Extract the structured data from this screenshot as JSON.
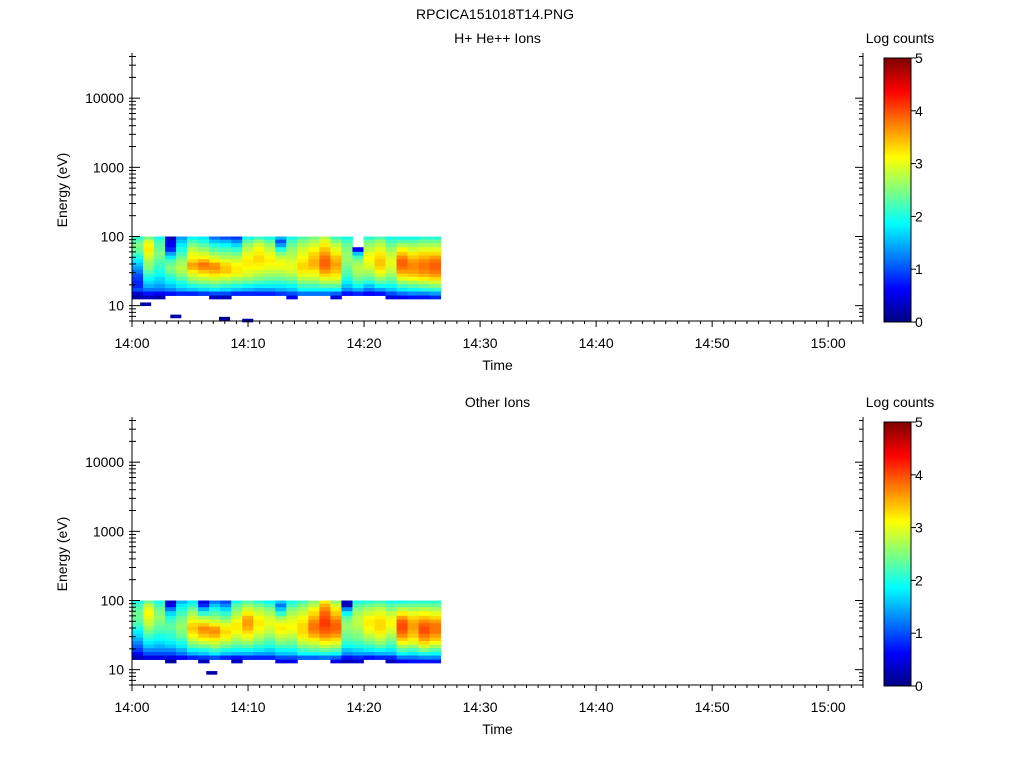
{
  "page_title": "RPCICA151018T14.PNG",
  "chart_data": [
    {
      "type": "heatmap",
      "title": "H+ He++ Ions",
      "xlabel": "Time",
      "ylabel": "Energy (eV)",
      "y_scale": "log",
      "ylim": [
        6,
        45000
      ],
      "xlim": [
        "14:00",
        "15:03"
      ],
      "x_ticks": [
        "14:00",
        "14:10",
        "14:20",
        "14:30",
        "14:40",
        "14:50",
        "15:00"
      ],
      "y_ticks": [
        "10",
        "100",
        "1000",
        "10000"
      ],
      "colorbar": {
        "label": "Log counts",
        "range": [
          0,
          5
        ],
        "ticks": [
          "0",
          "1",
          "2",
          "3",
          "4",
          "5"
        ],
        "colormap": "jet"
      },
      "energy_bins": [
        100,
        90,
        80,
        70,
        60,
        53,
        47,
        42,
        37,
        33,
        29,
        26,
        23,
        20.5,
        18,
        16,
        14,
        12.5
      ],
      "time_start": "14:00",
      "time_step_min": 0.95,
      "z": [
        [
          2.1,
          2.3,
          2.5,
          2.4,
          2.2,
          2.0,
          1.8,
          1.6,
          1.4,
          1.2,
          1.0,
          0.9,
          0.8,
          0.8,
          1.0,
          0.4,
          0.2,
          null
        ],
        [
          2.5,
          2.9,
          3.1,
          3.2,
          3.0,
          2.9,
          2.7,
          2.6,
          2.5,
          2.3,
          2.1,
          1.9,
          1.7,
          1.5,
          1.2,
          0.7,
          0.3,
          null
        ],
        [
          2.0,
          2.2,
          2.3,
          2.4,
          2.5,
          2.4,
          2.3,
          2.2,
          2.1,
          2.0,
          1.9,
          1.7,
          1.6,
          1.4,
          1.2,
          0.6,
          0.2,
          null
        ],
        [
          0.3,
          0.5,
          0.6,
          0.8,
          1.4,
          1.8,
          2.2,
          2.4,
          2.5,
          2.4,
          2.2,
          2.0,
          1.8,
          1.6,
          1.3,
          0.7,
          null,
          null
        ],
        [
          1.4,
          1.6,
          1.8,
          2.0,
          2.2,
          2.4,
          2.6,
          2.7,
          2.8,
          2.7,
          2.5,
          2.3,
          2.0,
          1.8,
          1.5,
          0.8,
          null,
          null
        ],
        [
          1.9,
          2.2,
          2.5,
          2.8,
          3.0,
          3.1,
          3.3,
          3.6,
          3.5,
          3.2,
          2.9,
          2.7,
          2.4,
          2.0,
          1.6,
          0.8,
          null,
          null
        ],
        [
          1.8,
          2.0,
          2.3,
          2.6,
          2.9,
          3.1,
          3.5,
          3.8,
          3.7,
          3.4,
          3.1,
          2.8,
          2.5,
          2.1,
          1.7,
          0.9,
          null,
          null
        ],
        [
          1.2,
          1.6,
          2.0,
          2.3,
          2.6,
          2.9,
          3.2,
          3.6,
          3.7,
          3.5,
          3.2,
          2.9,
          2.6,
          2.2,
          1.8,
          1.0,
          0.3,
          null
        ],
        [
          1.0,
          1.5,
          1.9,
          2.2,
          2.5,
          2.7,
          3.0,
          3.3,
          3.4,
          3.4,
          3.1,
          2.8,
          2.5,
          2.1,
          1.7,
          1.0,
          0.3,
          null
        ],
        [
          0.9,
          1.3,
          1.7,
          2.1,
          2.4,
          2.7,
          2.9,
          3.1,
          3.2,
          3.2,
          3.0,
          2.7,
          2.4,
          2.0,
          1.6,
          0.8,
          null,
          null
        ],
        [
          2.0,
          2.3,
          2.6,
          2.8,
          3.0,
          3.1,
          3.2,
          3.2,
          3.1,
          3.0,
          2.9,
          2.6,
          2.3,
          1.9,
          1.5,
          0.8,
          null,
          null
        ],
        [
          2.2,
          2.6,
          2.9,
          3.1,
          3.2,
          3.3,
          3.3,
          3.2,
          3.1,
          2.9,
          2.7,
          2.5,
          2.2,
          1.8,
          1.4,
          0.8,
          null,
          null
        ],
        [
          2.0,
          2.3,
          2.6,
          2.8,
          3.0,
          3.1,
          3.2,
          3.1,
          3.0,
          2.8,
          2.6,
          2.4,
          2.1,
          1.8,
          1.4,
          0.8,
          null,
          null
        ],
        [
          1.5,
          1.0,
          1.4,
          2.0,
          2.5,
          2.8,
          3.0,
          3.1,
          3.0,
          2.8,
          2.6,
          2.4,
          2.1,
          1.8,
          1.5,
          0.9,
          null,
          null
        ],
        [
          2.0,
          2.2,
          2.4,
          2.6,
          2.7,
          2.8,
          2.9,
          3.0,
          3.0,
          2.9,
          2.7,
          2.5,
          2.2,
          1.9,
          1.6,
          1.0,
          0.6,
          null
        ],
        [
          2.3,
          2.5,
          2.7,
          2.9,
          3.0,
          3.1,
          3.2,
          3.3,
          3.3,
          3.2,
          3.0,
          2.8,
          2.5,
          2.2,
          1.9,
          1.2,
          null,
          null
        ],
        [
          2.5,
          2.7,
          2.9,
          3.1,
          3.3,
          3.4,
          3.5,
          3.5,
          3.4,
          3.2,
          3.0,
          2.8,
          2.5,
          2.2,
          1.9,
          1.2,
          null,
          null
        ],
        [
          2.8,
          3.0,
          3.2,
          3.4,
          3.6,
          3.8,
          3.9,
          3.9,
          3.8,
          3.6,
          3.3,
          3.0,
          2.7,
          2.3,
          1.9,
          1.2,
          null,
          null
        ],
        [
          2.2,
          2.5,
          2.8,
          3.0,
          3.2,
          3.4,
          3.5,
          3.6,
          3.5,
          3.4,
          3.2,
          3.0,
          2.7,
          2.3,
          1.9,
          1.1,
          0.5,
          null
        ],
        [
          2.0,
          2.2,
          2.4,
          2.5,
          2.6,
          2.6,
          2.6,
          2.5,
          2.4,
          2.3,
          2.2,
          2.0,
          1.8,
          1.6,
          1.3,
          0.7,
          null,
          null
        ],
        [
          null,
          null,
          null,
          0.6,
          1.6,
          2.2,
          2.5,
          2.7,
          2.8,
          2.7,
          2.6,
          2.4,
          2.2,
          1.9,
          1.5,
          0.8,
          null,
          null
        ],
        [
          2.1,
          2.4,
          2.6,
          2.8,
          3.0,
          3.1,
          3.1,
          3.0,
          2.9,
          2.7,
          2.5,
          2.3,
          2.0,
          1.6,
          1.2,
          0.6,
          null,
          null
        ],
        [
          2.3,
          2.6,
          2.8,
          3.0,
          3.2,
          3.3,
          3.4,
          3.4,
          3.3,
          3.1,
          2.9,
          2.6,
          2.3,
          1.9,
          1.4,
          0.7,
          null,
          null
        ],
        [
          2.0,
          2.2,
          2.4,
          2.6,
          2.8,
          2.9,
          3.0,
          3.0,
          2.9,
          2.8,
          2.6,
          2.4,
          2.2,
          1.9,
          1.6,
          1.0,
          0.5,
          null
        ],
        [
          2.0,
          2.3,
          2.7,
          3.1,
          3.4,
          3.7,
          3.9,
          3.9,
          3.8,
          3.6,
          3.3,
          3.0,
          2.6,
          2.2,
          1.8,
          1.2,
          0.6,
          null
        ],
        [
          2.0,
          2.3,
          2.6,
          2.9,
          3.2,
          3.4,
          3.6,
          3.7,
          3.7,
          3.6,
          3.4,
          3.1,
          2.7,
          2.3,
          1.9,
          1.3,
          0.7,
          null
        ],
        [
          2.1,
          2.4,
          2.7,
          3.0,
          3.3,
          3.5,
          3.7,
          3.8,
          3.8,
          3.7,
          3.5,
          3.2,
          2.8,
          2.4,
          2.0,
          1.3,
          0.7,
          null
        ],
        [
          2.1,
          2.4,
          2.7,
          3.0,
          3.3,
          3.6,
          3.8,
          3.9,
          3.9,
          3.8,
          3.6,
          3.3,
          2.9,
          2.5,
          2.1,
          1.4,
          0.8,
          null
        ]
      ],
      "low_energy_points": [
        {
          "time_min": 0.7,
          "energy": 10.5,
          "value": 0.2
        },
        {
          "time_min": 3.3,
          "energy": 7.0,
          "value": 0.2
        },
        {
          "time_min": 7.5,
          "energy": 6.5,
          "value": 0.1
        },
        {
          "time_min": 9.5,
          "energy": 6.1,
          "value": 0.2
        }
      ]
    },
    {
      "type": "heatmap",
      "title": "Other Ions",
      "xlabel": "Time",
      "ylabel": "Energy (eV)",
      "y_scale": "log",
      "ylim": [
        6,
        45000
      ],
      "xlim": [
        "14:00",
        "15:03"
      ],
      "x_ticks": [
        "14:00",
        "14:10",
        "14:20",
        "14:30",
        "14:40",
        "14:50",
        "15:00"
      ],
      "y_ticks": [
        "10",
        "100",
        "1000",
        "10000"
      ],
      "colorbar": {
        "label": "Log counts",
        "range": [
          0,
          5
        ],
        "ticks": [
          "0",
          "1",
          "2",
          "3",
          "4",
          "5"
        ],
        "colormap": "jet"
      },
      "energy_bins": [
        100,
        90,
        80,
        70,
        60,
        53,
        47,
        42,
        37,
        33,
        29,
        26,
        23,
        20.5,
        18,
        16,
        14,
        12.5
      ],
      "time_start": "14:00",
      "time_step_min": 0.95,
      "z": [
        [
          2.0,
          2.2,
          2.3,
          2.4,
          2.4,
          2.3,
          2.2,
          2.0,
          1.8,
          1.7,
          1.5,
          1.3,
          1.1,
          0.9,
          0.6,
          0.3,
          null,
          null
        ],
        [
          2.4,
          2.8,
          3.0,
          3.1,
          3.0,
          2.9,
          2.8,
          2.6,
          2.4,
          2.2,
          2.0,
          1.8,
          1.6,
          1.3,
          1.0,
          0.5,
          null,
          null
        ],
        [
          2.0,
          2.2,
          2.4,
          2.5,
          2.6,
          2.5,
          2.4,
          2.3,
          2.2,
          2.0,
          1.9,
          1.7,
          1.5,
          1.3,
          1.0,
          0.5,
          null,
          null
        ],
        [
          0.3,
          0.6,
          1.2,
          1.7,
          2.0,
          2.2,
          2.3,
          2.3,
          2.2,
          2.1,
          2.0,
          1.8,
          1.6,
          1.3,
          1.0,
          0.5,
          0.2,
          null
        ],
        [
          1.5,
          1.8,
          2.0,
          2.2,
          2.4,
          2.5,
          2.6,
          2.6,
          2.5,
          2.4,
          2.2,
          2.0,
          1.8,
          1.5,
          1.2,
          0.6,
          null,
          null
        ],
        [
          1.8,
          2.1,
          2.4,
          2.7,
          2.9,
          3.1,
          3.3,
          3.4,
          3.3,
          3.1,
          2.9,
          2.6,
          2.3,
          1.9,
          1.5,
          0.8,
          null,
          null
        ],
        [
          0.5,
          0.8,
          1.5,
          2.1,
          2.7,
          3.0,
          3.4,
          3.7,
          3.6,
          3.4,
          3.1,
          2.8,
          2.4,
          2.0,
          1.6,
          0.9,
          0.3,
          null
        ],
        [
          1.2,
          1.6,
          2.0,
          2.3,
          2.6,
          2.9,
          3.2,
          3.6,
          3.7,
          3.5,
          3.2,
          2.9,
          2.6,
          2.2,
          1.8,
          1.0,
          null,
          null
        ],
        [
          1.0,
          1.3,
          1.7,
          2.1,
          2.4,
          2.7,
          3.0,
          3.2,
          3.3,
          3.2,
          3.0,
          2.7,
          2.4,
          2.0,
          1.6,
          0.8,
          null,
          null
        ],
        [
          2.0,
          2.3,
          2.5,
          2.7,
          2.9,
          3.1,
          3.2,
          3.2,
          3.1,
          2.9,
          2.7,
          2.5,
          2.2,
          1.9,
          1.5,
          0.7,
          0.3,
          null
        ],
        [
          2.3,
          2.6,
          2.9,
          3.2,
          3.5,
          3.6,
          3.6,
          3.5,
          3.3,
          3.1,
          2.9,
          2.6,
          2.3,
          1.9,
          1.5,
          0.8,
          null,
          null
        ],
        [
          2.1,
          2.4,
          2.7,
          2.9,
          3.1,
          3.2,
          3.2,
          3.1,
          3.0,
          2.8,
          2.6,
          2.4,
          2.1,
          1.8,
          1.4,
          0.8,
          null,
          null
        ],
        [
          1.9,
          2.2,
          2.5,
          2.7,
          2.9,
          3.0,
          3.0,
          2.9,
          2.8,
          2.6,
          2.4,
          2.2,
          2.0,
          1.7,
          1.4,
          0.8,
          null,
          null
        ],
        [
          1.6,
          1.2,
          1.6,
          2.1,
          2.6,
          2.9,
          3.1,
          3.2,
          3.1,
          2.9,
          2.7,
          2.5,
          2.2,
          1.9,
          1.6,
          1.0,
          0.5,
          null
        ],
        [
          2.0,
          2.2,
          2.5,
          2.7,
          2.9,
          3.0,
          3.1,
          3.1,
          3.0,
          2.8,
          2.6,
          2.4,
          2.2,
          1.9,
          1.6,
          1.0,
          0.6,
          null
        ],
        [
          2.2,
          2.5,
          2.7,
          2.9,
          3.1,
          3.2,
          3.3,
          3.3,
          3.3,
          3.2,
          3.0,
          2.8,
          2.5,
          2.2,
          1.9,
          1.1,
          null,
          null
        ],
        [
          2.6,
          2.8,
          3.1,
          3.3,
          3.5,
          3.7,
          3.8,
          3.8,
          3.7,
          3.5,
          3.2,
          2.9,
          2.6,
          2.3,
          1.9,
          1.1,
          null,
          null
        ],
        [
          3.2,
          3.5,
          3.7,
          3.9,
          4.0,
          4.1,
          4.1,
          4.0,
          3.9,
          3.7,
          3.4,
          3.1,
          2.8,
          2.4,
          2.0,
          1.2,
          null,
          null
        ],
        [
          2.6,
          2.9,
          3.2,
          3.4,
          3.6,
          3.8,
          3.9,
          3.9,
          3.8,
          3.6,
          3.3,
          3.0,
          2.7,
          2.3,
          1.9,
          1.1,
          0.5,
          null
        ],
        [
          0.3,
          0.3,
          1.3,
          1.9,
          2.3,
          2.5,
          2.6,
          2.6,
          2.5,
          2.4,
          2.3,
          2.1,
          1.9,
          1.6,
          1.3,
          0.7,
          0.3,
          null
        ],
        [
          2.0,
          2.3,
          2.5,
          2.7,
          2.8,
          2.8,
          2.8,
          2.7,
          2.6,
          2.5,
          2.4,
          2.2,
          2.0,
          1.7,
          1.4,
          0.8,
          0.4,
          null
        ],
        [
          2.1,
          2.4,
          2.7,
          2.9,
          3.1,
          3.2,
          3.2,
          3.1,
          3.0,
          2.8,
          2.6,
          2.4,
          2.1,
          1.8,
          1.4,
          0.7,
          null,
          null
        ],
        [
          2.2,
          2.5,
          2.8,
          3.0,
          3.2,
          3.3,
          3.3,
          3.3,
          3.2,
          3.0,
          2.8,
          2.6,
          2.3,
          1.9,
          1.5,
          0.8,
          null,
          null
        ],
        [
          2.0,
          2.3,
          2.5,
          2.8,
          3.0,
          3.1,
          3.1,
          3.0,
          2.9,
          2.7,
          2.5,
          2.3,
          2.1,
          1.8,
          1.5,
          0.8,
          0.3,
          null
        ],
        [
          2.0,
          2.4,
          2.8,
          3.2,
          3.6,
          3.9,
          4.0,
          4.0,
          3.9,
          3.7,
          3.4,
          3.1,
          2.7,
          2.3,
          1.9,
          1.2,
          0.6,
          null
        ],
        [
          2.1,
          2.4,
          2.7,
          3.0,
          3.3,
          3.5,
          3.6,
          3.6,
          3.5,
          3.4,
          3.2,
          3.0,
          2.6,
          2.2,
          1.8,
          1.2,
          0.7,
          null
        ],
        [
          2.1,
          2.4,
          2.8,
          3.1,
          3.4,
          3.7,
          3.9,
          4.0,
          4.0,
          3.8,
          3.6,
          3.3,
          2.9,
          2.5,
          2.0,
          1.3,
          0.7,
          null
        ],
        [
          2.1,
          2.4,
          2.7,
          3.0,
          3.3,
          3.6,
          3.8,
          3.8,
          3.8,
          3.6,
          3.4,
          3.1,
          2.7,
          2.3,
          1.9,
          1.3,
          0.7,
          null
        ]
      ],
      "low_energy_points": [
        {
          "time_min": 6.4,
          "energy": 9.0,
          "value": 0.2
        }
      ]
    }
  ]
}
